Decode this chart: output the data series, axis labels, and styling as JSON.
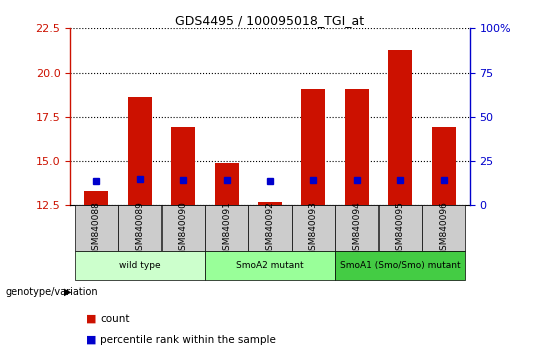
{
  "title": "GDS4495 / 100095018_TGI_at",
  "samples": [
    "GSM840088",
    "GSM840089",
    "GSM840090",
    "GSM840091",
    "GSM840092",
    "GSM840093",
    "GSM840094",
    "GSM840095",
    "GSM840096"
  ],
  "count_values": [
    13.3,
    18.6,
    16.9,
    14.9,
    12.7,
    19.1,
    19.1,
    21.3,
    16.9
  ],
  "percentile_values": [
    13.8,
    14.7,
    14.3,
    14.2,
    13.65,
    14.3,
    14.5,
    14.5,
    14.2
  ],
  "ylim_left": [
    12.5,
    22.5
  ],
  "ylim_right": [
    0,
    100
  ],
  "right_ticks": [
    0,
    25,
    50,
    75,
    100
  ],
  "right_tick_labels": [
    "0",
    "25",
    "50",
    "75",
    "100%"
  ],
  "left_ticks": [
    12.5,
    15.0,
    17.5,
    20.0,
    22.5
  ],
  "groups": [
    {
      "label": "wild type",
      "indices": [
        0,
        1,
        2
      ],
      "color": "#ccffcc"
    },
    {
      "label": "SmoA2 mutant",
      "indices": [
        3,
        4,
        5
      ],
      "color": "#99ff99"
    },
    {
      "label": "SmoA1 (Smo/Smo) mutant",
      "indices": [
        6,
        7,
        8
      ],
      "color": "#44cc44"
    }
  ],
  "bar_color": "#cc1100",
  "marker_color": "#0000cc",
  "bar_width": 0.55,
  "left_axis_color": "#cc1100",
  "right_axis_color": "#0000cc",
  "genotype_label": "genotype/variation",
  "count_label": "count",
  "percentile_label": "percentile rank within the sample",
  "sample_box_color": "#cccccc"
}
